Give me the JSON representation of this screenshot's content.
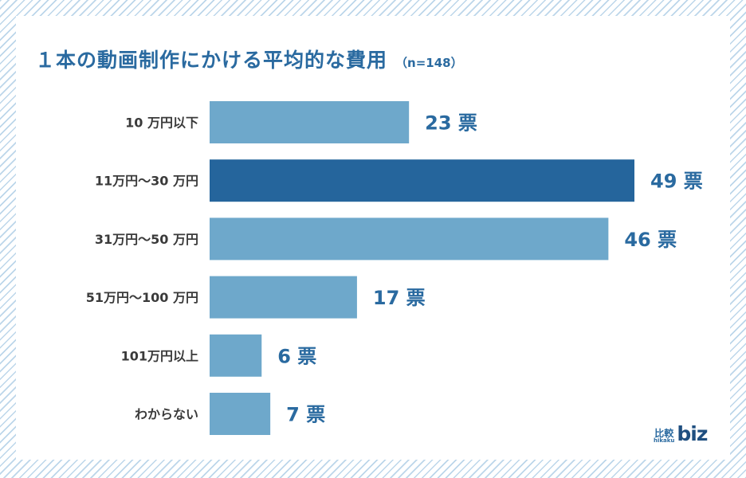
{
  "title": "１本の動画制作にかける平均的な費用",
  "subtitle": "（n=148）",
  "chart_data": {
    "type": "bar",
    "orientation": "horizontal",
    "title": "１本の動画制作にかける平均的な費用",
    "subtitle": "（n=148）",
    "categories": [
      "10 万円以下",
      "11万円～30 万円",
      "31万円～50 万円",
      "51万円～100 万円",
      "101万円以上",
      "わからない"
    ],
    "values": [
      23,
      49,
      46,
      17,
      6,
      7
    ],
    "value_labels": [
      "23 票",
      "49 票",
      "46 票",
      "17 票",
      "6 票",
      "7 票"
    ],
    "unit": "票",
    "highlight_index": 1,
    "xlim": [
      0,
      49
    ],
    "grid": false,
    "legend": "none",
    "colors": {
      "bar": "#6ea8cb",
      "highlight": "#25659c",
      "value_label": "#2a6aa0",
      "category_label": "#3a3a3a"
    }
  },
  "logo": {
    "kanji": "比較",
    "kana": "hikaku",
    "word": "biz"
  }
}
